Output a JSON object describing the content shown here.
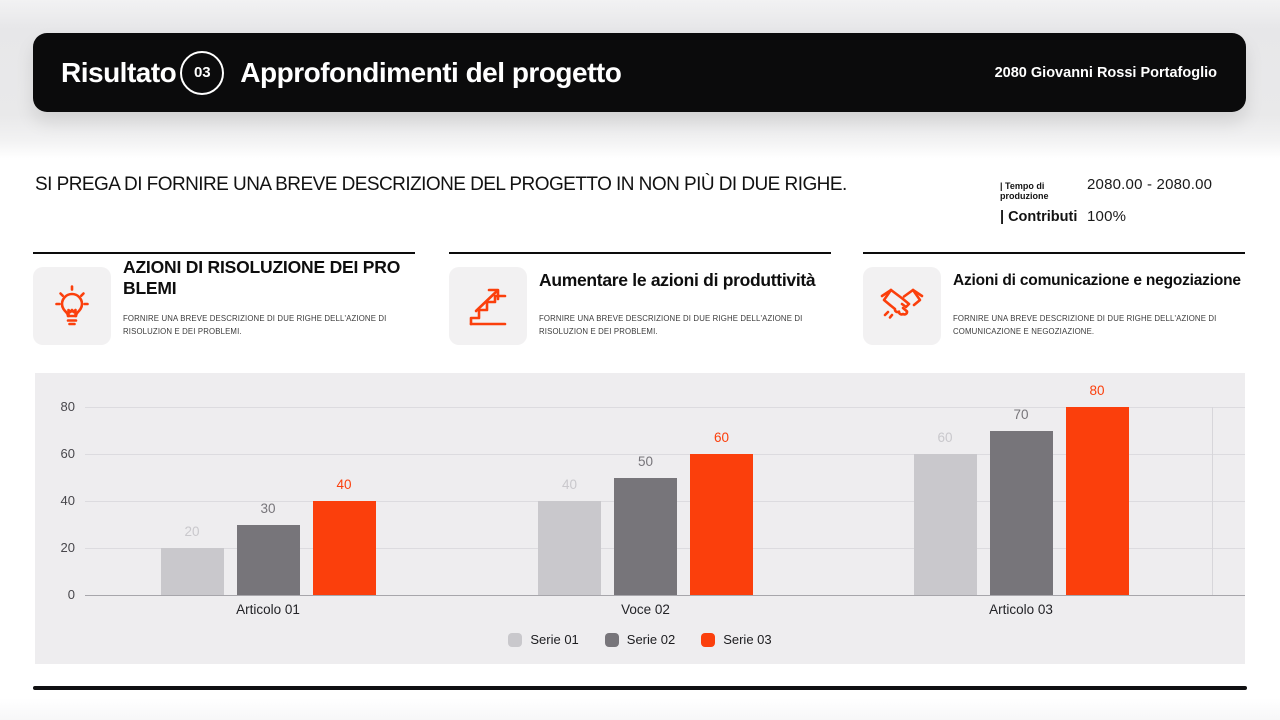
{
  "header": {
    "result_label": "Risultato",
    "result_number": "03",
    "title": "Approfondimenti del progetto",
    "portfolio": "2080 Giovanni Rossi Portafoglio"
  },
  "intro": {
    "description": "SI PREGA DI FORNIRE UNA BREVE DESCRIZIONE DEL PROGETTO IN NON PIÙ DI DUE RIGHE.",
    "stats": [
      {
        "label": "| Tempo di produzione",
        "value": "2080.00 - 2080.00"
      },
      {
        "label": "| Contributi",
        "value": "100%"
      }
    ]
  },
  "cards": [
    {
      "icon": "lightbulb-icon",
      "title": "AZIONI DI RISOLUZIONE DEI PRO BLEMI",
      "description": "FORNIRE UNA BREVE DESCRIZIONE DI DUE RIGHE DELL'AZIONE DI RISOLUZION E DEI PROBLEMI."
    },
    {
      "icon": "growth-stairs-icon",
      "title": "Aumentare le azioni di produttività",
      "description": "FORNIRE UNA BREVE DESCRIZIONE DI DUE RIGHE DELL'AZIONE DI RISOLUZION E DEI PROBLEMI."
    },
    {
      "icon": "handshake-icon",
      "title": "Azioni di comunicazione e negoziazione",
      "description": "FORNIRE UNA BREVE DESCRIZIONE DI DUE RIGHE DELL'AZIONE DI COMUNICAZIONE E NEGOZIAZIONE."
    }
  ],
  "chart_data": {
    "type": "bar",
    "title": "",
    "categories": [
      "Articolo 01",
      "Voce 02",
      "Articolo 03"
    ],
    "series": [
      {
        "name": "Serie 01",
        "color": "#c9c8cc",
        "values": [
          20,
          40,
          60
        ]
      },
      {
        "name": "Serie 02",
        "color": "#77757a",
        "values": [
          30,
          50,
          70
        ]
      },
      {
        "name": "Serie 03",
        "color": "#fb3f0c",
        "values": [
          40,
          60,
          80
        ]
      }
    ],
    "xlabel": "",
    "ylabel": "",
    "ylim": [
      0,
      80
    ],
    "yticks": [
      0,
      20,
      40,
      60,
      80
    ],
    "grid": true,
    "data_labels": true,
    "legend_position": "bottom"
  },
  "colors": {
    "accent": "#fb3f0c",
    "header_bg": "#0b0b0c",
    "chart_bg": "#eeedef",
    "page_top": "#e8e8ea"
  }
}
